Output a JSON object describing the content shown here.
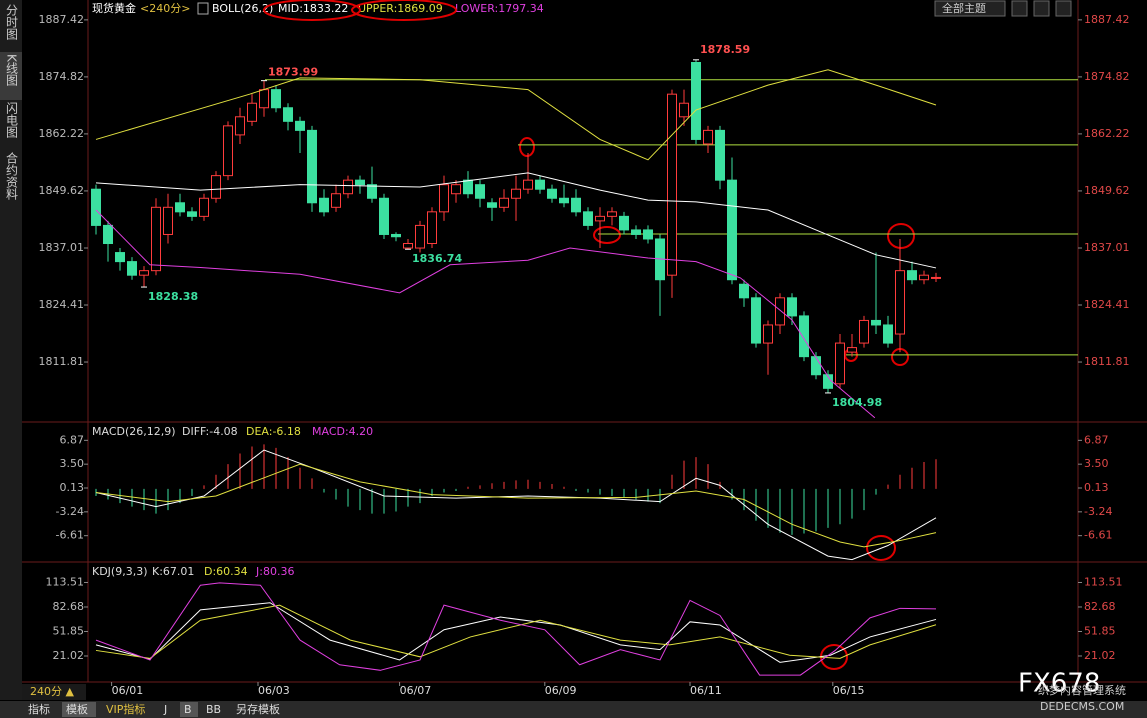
{
  "header": {
    "symbol": "现货黄金",
    "period": "<240分>",
    "boll": "BOLL(26,2)",
    "mid": "MID:1833.22",
    "upper": "UPPER:1869.09",
    "lower": "LOWER:1797.34",
    "theme": "全部主题"
  },
  "sidebar": [
    "分时图",
    "K线图",
    "闪电图",
    "合约资料"
  ],
  "toolbar": {
    "period": "240分 ▲",
    "tabs": [
      "指标",
      "模板",
      "VIP指标",
      "J",
      "B",
      "BB",
      "另存模板"
    ]
  },
  "watermark": {
    "brand": "FX678",
    "site": "织梦内容管理系统",
    "domain": "DEDECMS.COM"
  },
  "x_labels": [
    "06/01",
    "06/03",
    "06/07",
    "06/09",
    "06/11",
    "06/15"
  ],
  "x_label_at": [
    1.3,
    13.5,
    25.3,
    37.4,
    49.5,
    61.4
  ],
  "chart_data": [
    {
      "type": "candlestick",
      "up_color": "#ff3c3c",
      "down_color": "#3ce0a0",
      "open": [
        1850,
        1842,
        1836,
        1834,
        1831,
        1832,
        1840,
        1847,
        1845,
        1844,
        1848,
        1853,
        1862,
        1865,
        1868,
        1872,
        1868,
        1865,
        1863,
        1848,
        1846,
        1849,
        1852,
        1851,
        1848,
        1840,
        1837,
        1837,
        1838,
        1845,
        1849,
        1852,
        1851,
        1847,
        1846,
        1848,
        1850,
        1852,
        1850,
        1848,
        1848,
        1845,
        1843,
        1844,
        1844,
        1841,
        1841,
        1839,
        1831,
        1866,
        1878,
        1860,
        1863,
        1852,
        1829,
        1826,
        1816,
        1820,
        1826,
        1822,
        1813,
        1809,
        1807,
        1814,
        1816,
        1821,
        1820,
        1818,
        1832,
        1830,
        1830.5
      ],
      "high": [
        1851,
        1843,
        1837,
        1835,
        1833,
        1848,
        1849,
        1849,
        1846,
        1849,
        1854,
        1865,
        1868,
        1871,
        1873.99,
        1873,
        1869,
        1866,
        1864,
        1850,
        1851,
        1853,
        1853,
        1855,
        1849,
        1840.5,
        1839,
        1843,
        1846,
        1853,
        1852,
        1854,
        1852,
        1848,
        1850,
        1853,
        1858,
        1853,
        1851,
        1851,
        1850,
        1846,
        1846,
        1846,
        1845,
        1842,
        1842,
        1840,
        1872,
        1872,
        1878.59,
        1864,
        1864,
        1857,
        1830,
        1827,
        1821,
        1827,
        1827,
        1823,
        1814,
        1810,
        1818,
        1818,
        1822,
        1836,
        1822,
        1839,
        1834,
        1832,
        1831.5
      ],
      "low": [
        1840,
        1834,
        1832,
        1830,
        1828.38,
        1831,
        1838,
        1844,
        1843,
        1843,
        1847,
        1852,
        1860,
        1864,
        1866,
        1867,
        1863,
        1858,
        1845,
        1844,
        1845,
        1848,
        1849,
        1847,
        1839,
        1838.5,
        1836.74,
        1836,
        1837,
        1843,
        1847,
        1848,
        1846,
        1843,
        1845,
        1843,
        1849,
        1849,
        1847,
        1846,
        1844,
        1841,
        1837,
        1842,
        1840,
        1839,
        1838,
        1822,
        1826,
        1864,
        1860,
        1858,
        1850,
        1829,
        1824,
        1815,
        1809,
        1818,
        1820,
        1812,
        1808,
        1804.98,
        1806,
        1813,
        1815,
        1818,
        1815,
        1814,
        1829,
        1829,
        1829.5
      ],
      "close": [
        1842,
        1838,
        1834,
        1831,
        1832,
        1846,
        1846,
        1845,
        1844,
        1848,
        1853,
        1864,
        1866,
        1869,
        1872,
        1868,
        1865,
        1863,
        1847,
        1845,
        1849,
        1852,
        1851,
        1848,
        1840,
        1839.5,
        1838,
        1842,
        1845,
        1851,
        1851,
        1849,
        1848,
        1846,
        1848,
        1850,
        1852,
        1850,
        1848,
        1847,
        1845,
        1842,
        1844,
        1845,
        1841,
        1840,
        1839,
        1830,
        1871,
        1869,
        1861,
        1863,
        1852,
        1830,
        1826,
        1816,
        1820,
        1826,
        1822,
        1813,
        1809,
        1806,
        1816,
        1815,
        1821,
        1820,
        1816,
        1832,
        1830,
        1831,
        1830.5
      ],
      "series": [
        {
          "name": "UPPER",
          "color": "#e0e040",
          "x": [
            0,
            12.8,
            17,
            27,
            36,
            42,
            46,
            50,
            56,
            61,
            65,
            70
          ],
          "values": [
            1861,
            1871,
            1874.6,
            1874.2,
            1872,
            1861,
            1856.5,
            1867.5,
            1873,
            1876.4,
            1873,
            1868.6
          ]
        },
        {
          "name": "MID",
          "color": "#ffffff",
          "x": [
            0,
            8.7,
            17,
            27,
            36,
            42,
            46,
            50,
            56,
            61,
            65,
            70
          ],
          "values": [
            1851.4,
            1849.8,
            1851,
            1850.5,
            1853.6,
            1849.8,
            1847.6,
            1847.2,
            1845.4,
            1839.9,
            1835.5,
            1832.6
          ]
        },
        {
          "name": "LOWER",
          "color": "#e040e0",
          "x": [
            0,
            4.5,
            8.7,
            17,
            25.3,
            29.5,
            36,
            39.5,
            46,
            50,
            53.7,
            58,
            61.2,
            64.9
          ],
          "values": [
            1845.4,
            1833.3,
            1832.7,
            1831.2,
            1827.1,
            1833.3,
            1834.3,
            1837,
            1834.8,
            1834,
            1830.4,
            1821.1,
            1807.8,
            1799.5
          ]
        }
      ],
      "hlines": [
        1874.2,
        1859.8,
        1840.1,
        1813.4
      ],
      "hline_color": "#b0e040",
      "ylim": [
        1799,
        1889.6
      ],
      "yticks": [
        1887.42,
        1874.82,
        1862.22,
        1849.62,
        1837.01,
        1824.41,
        1811.81
      ]
    },
    {
      "type": "macd",
      "title": "MACD(26,12,9)",
      "diff": "DIFF:-4.08",
      "dea": "DEA:-6.18",
      "macd": "MACD:4.20",
      "values": [
        -1,
        -1.5,
        -2,
        -2.5,
        -3,
        -3.5,
        -3,
        -2,
        -1,
        0.5,
        2,
        3.5,
        5,
        6,
        6.3,
        5.8,
        4.5,
        3,
        1.5,
        -0.5,
        -1.5,
        -2.5,
        -3,
        -3.5,
        -3.5,
        -3.2,
        -2.5,
        -2,
        -1,
        -0.5,
        -0.3,
        0.3,
        0.5,
        0.8,
        1,
        1.2,
        1.3,
        1,
        0.7,
        0.3,
        -0.3,
        -0.5,
        -0.8,
        -1,
        -1.2,
        -1.5,
        -1.8,
        -2,
        2,
        4,
        4.5,
        3.5,
        1,
        -1.5,
        -3,
        -4.5,
        -5.5,
        -6.2,
        -6.5,
        -6.3,
        -6,
        -5.5,
        -5,
        -4.2,
        -3,
        -0.8,
        0.6,
        2,
        3,
        3.8,
        4.2
      ],
      "up_color": "#ff3c3c",
      "down_color": "#3ce0a0",
      "series": [
        {
          "name": "DIFF",
          "color": "#ffffff",
          "x": [
            0,
            5,
            9,
            14,
            18,
            24,
            30,
            36,
            42,
            47,
            50,
            52,
            56,
            61,
            63,
            66,
            70
          ],
          "values": [
            -0.5,
            -2.5,
            -1,
            5.5,
            3,
            -1,
            -1.3,
            -1,
            -1.3,
            -1.8,
            1.5,
            0.5,
            -5,
            -9.5,
            -10,
            -8,
            -4.08
          ]
        },
        {
          "name": "DEA",
          "color": "#e0e040",
          "x": [
            0,
            6,
            10,
            17,
            22,
            28,
            36,
            45,
            50,
            54,
            58,
            62,
            64,
            67,
            70
          ],
          "values": [
            -0.5,
            -1.8,
            -1,
            3.5,
            1,
            -0.8,
            -1.3,
            -1.2,
            -0.3,
            -1.5,
            -5,
            -7.5,
            -8.2,
            -7.3,
            -6.18
          ]
        }
      ],
      "ylim": [
        -10.05,
        9.18
      ],
      "yticks": [
        6.87,
        3.5,
        0.13,
        -3.24,
        -6.61
      ],
      "ytick_labels": [
        "6.87",
        "3.50",
        "0.13",
        "-3.24",
        "-6.61"
      ]
    },
    {
      "type": "line",
      "title": "KDJ(9,3,3)",
      "k": "K:67.01",
      "d": "D:60.34",
      "j": "J:80.36",
      "series": [
        {
          "name": "K",
          "color": "#ffffff",
          "x": [
            0,
            4.5,
            8.7,
            14.5,
            19.5,
            25.3,
            29,
            33.7,
            38.7,
            43.7,
            47,
            49.5,
            52,
            57,
            61.2,
            64.5,
            70
          ],
          "values": [
            35,
            17,
            79,
            88,
            41,
            16,
            54,
            70,
            60,
            35,
            29,
            64,
            60,
            13,
            22,
            45,
            67.01
          ]
        },
        {
          "name": "D",
          "color": "#e0e040",
          "x": [
            0,
            4.5,
            8.7,
            15.3,
            21.2,
            27,
            31.2,
            37,
            43.7,
            47.8,
            52,
            57.8,
            62,
            64.5,
            70
          ],
          "values": [
            28,
            18,
            66,
            85,
            41,
            20,
            45,
            66,
            41,
            35,
            45,
            22,
            18,
            35,
            60.34
          ]
        },
        {
          "name": "J",
          "color": "#e040e0",
          "x": [
            0,
            4.5,
            8.7,
            10.3,
            13.7,
            17,
            20.3,
            23.7,
            27,
            29,
            33.7,
            37.4,
            40.3,
            43.7,
            47,
            49.5,
            52,
            55.3,
            58.7,
            61.6,
            64.5,
            67,
            70
          ],
          "values": [
            41,
            16,
            110,
            113,
            110,
            41,
            10,
            3,
            16,
            85,
            66,
            54,
            10,
            29,
            16,
            91,
            72,
            -3,
            -3,
            28,
            69,
            81,
            80.36
          ]
        }
      ],
      "ylim": [
        -9.2,
        135.5
      ],
      "yticks": [
        113.51,
        82.68,
        51.85,
        21.02
      ]
    }
  ]
}
